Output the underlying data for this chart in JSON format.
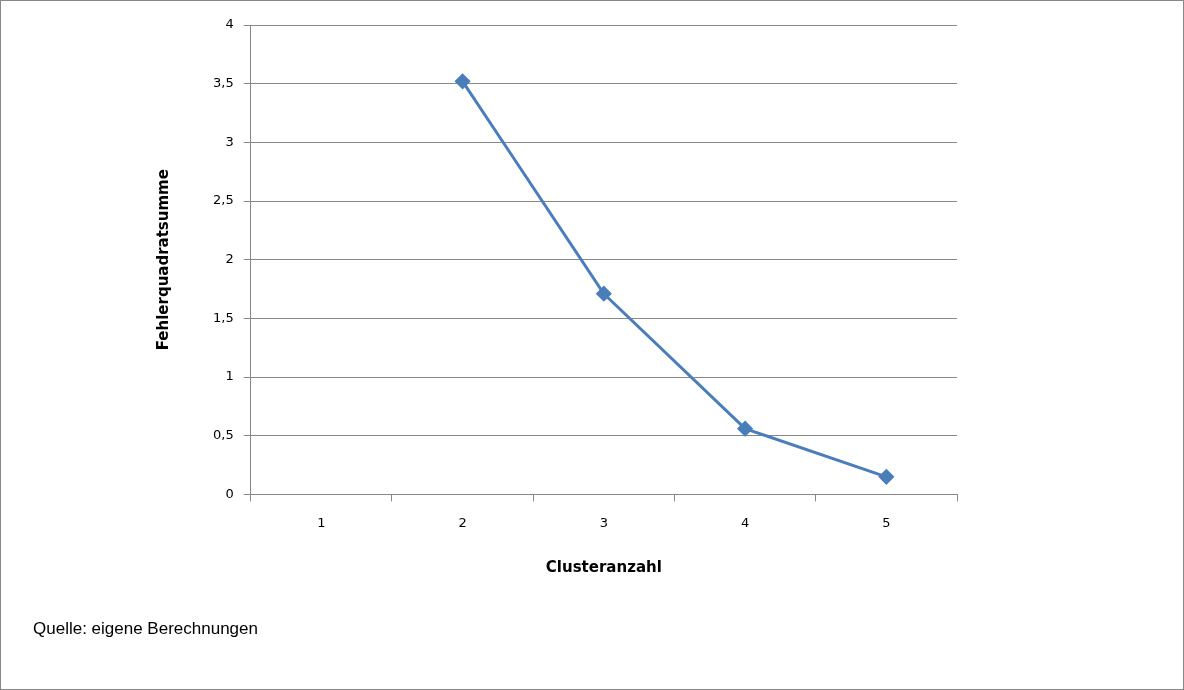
{
  "chart_data": {
    "type": "line",
    "xlabel": "Clusteranzahl",
    "ylabel": "Fehlerquadratsumme",
    "categories": [
      "1",
      "2",
      "3",
      "4",
      "5"
    ],
    "series": [
      {
        "color": "#4a7ebb",
        "values": [
          null,
          3.52,
          1.71,
          0.56,
          0.15
        ]
      }
    ],
    "ylim": [
      0,
      4
    ],
    "yticks": [
      0,
      {
        "value": 0.5,
        "label": "0,5"
      },
      1,
      {
        "value": 1.5,
        "label": "1,5"
      },
      2,
      {
        "value": 2.5,
        "label": "2,5"
      },
      3,
      {
        "value": 3.5,
        "label": "3,5"
      },
      4
    ],
    "grid": "y",
    "legend": false,
    "marker": "diamond",
    "line_style": "solid",
    "annotations": [
      "Quelle: eigene Berechnungen"
    ]
  }
}
